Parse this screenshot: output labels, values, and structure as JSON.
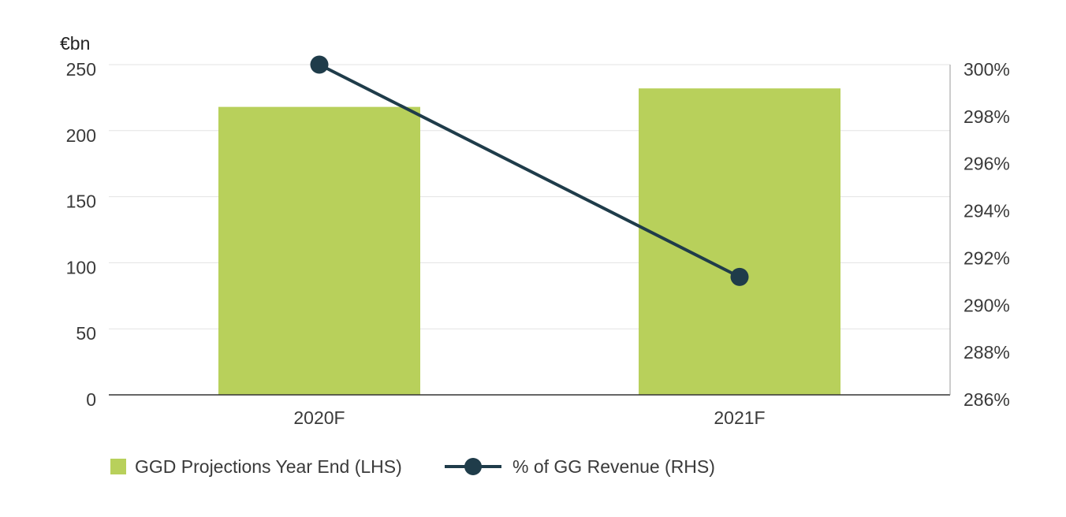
{
  "chart_data": {
    "type": "bar",
    "y_unit_label": "€bn",
    "categories": [
      "2020F",
      "2021F"
    ],
    "bar_series": {
      "name": "GGD Projections Year End (LHS)",
      "values": [
        218,
        232
      ],
      "color": "#b8d05b"
    },
    "line_series": {
      "name": "% of GG Revenue (RHS)",
      "values": [
        300,
        291
      ],
      "color": "#1f3c4a"
    },
    "left_axis": {
      "ylim": [
        0,
        250
      ],
      "ticks": [
        0,
        50,
        100,
        150,
        200,
        250
      ]
    },
    "right_axis": {
      "ylim": [
        286,
        300
      ],
      "ticks": [
        286,
        288,
        290,
        292,
        294,
        296,
        298,
        300
      ],
      "tick_labels": [
        "286%",
        "288%",
        "290%",
        "292%",
        "294%",
        "296%",
        "298%",
        "300%"
      ]
    },
    "grid": true,
    "legend_position": "bottom-left",
    "gridline_color": "#e3e3e3",
    "axis_color": "#333333"
  }
}
